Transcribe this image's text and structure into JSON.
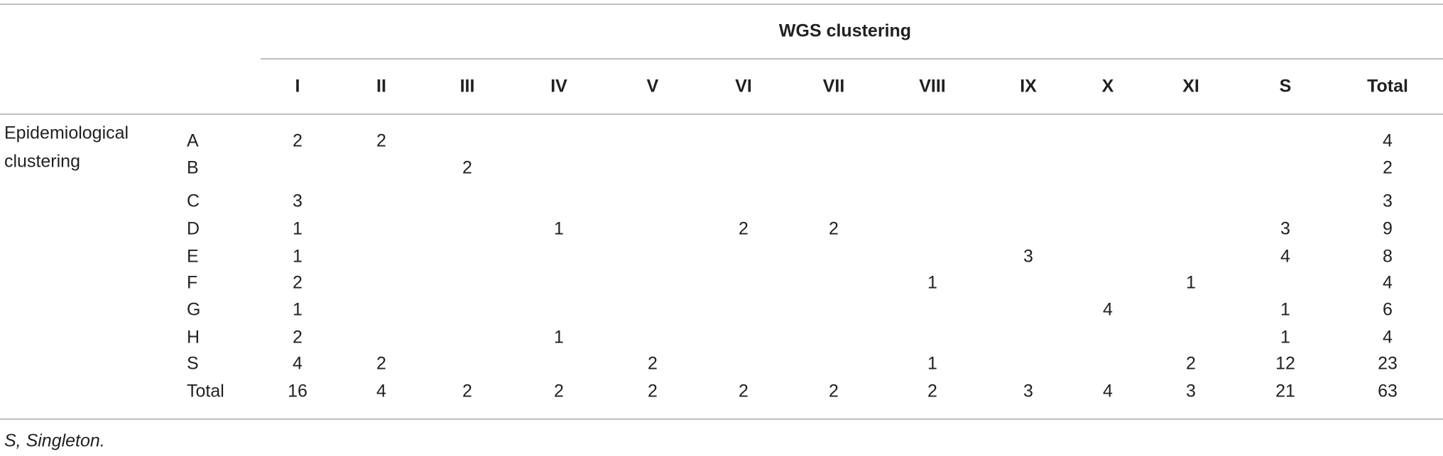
{
  "table": {
    "super_header": "WGS clustering",
    "columns": [
      "I",
      "II",
      "III",
      "IV",
      "V",
      "VI",
      "VII",
      "VIII",
      "IX",
      "X",
      "XI",
      "S",
      "Total"
    ],
    "row_group_label": [
      "Epidemiological",
      "clustering"
    ],
    "rows": [
      {
        "label": "A",
        "cells": [
          2,
          2,
          null,
          null,
          null,
          null,
          null,
          null,
          null,
          null,
          null,
          null,
          4
        ]
      },
      {
        "label": "B",
        "cells": [
          null,
          null,
          2,
          null,
          null,
          null,
          null,
          null,
          null,
          null,
          null,
          null,
          2
        ]
      },
      {
        "label": "C",
        "cells": [
          3,
          null,
          null,
          null,
          null,
          null,
          null,
          null,
          null,
          null,
          null,
          null,
          3
        ]
      },
      {
        "label": "D",
        "cells": [
          1,
          null,
          null,
          1,
          null,
          2,
          2,
          null,
          null,
          null,
          null,
          3,
          9
        ]
      },
      {
        "label": "E",
        "cells": [
          1,
          null,
          null,
          null,
          null,
          null,
          null,
          null,
          3,
          null,
          null,
          4,
          8
        ]
      },
      {
        "label": "F",
        "cells": [
          2,
          null,
          null,
          null,
          null,
          null,
          null,
          1,
          null,
          null,
          1,
          null,
          4
        ]
      },
      {
        "label": "G",
        "cells": [
          1,
          null,
          null,
          null,
          null,
          null,
          null,
          null,
          null,
          4,
          null,
          1,
          6
        ]
      },
      {
        "label": "H",
        "cells": [
          2,
          null,
          null,
          1,
          null,
          null,
          null,
          null,
          null,
          null,
          null,
          1,
          4
        ]
      },
      {
        "label": "S",
        "cells": [
          4,
          2,
          null,
          null,
          2,
          null,
          null,
          1,
          null,
          null,
          2,
          12,
          23
        ]
      },
      {
        "label": "Total",
        "cells": [
          16,
          4,
          2,
          2,
          2,
          2,
          2,
          2,
          3,
          4,
          3,
          21,
          63
        ]
      }
    ],
    "footnote": "S, Singleton."
  }
}
